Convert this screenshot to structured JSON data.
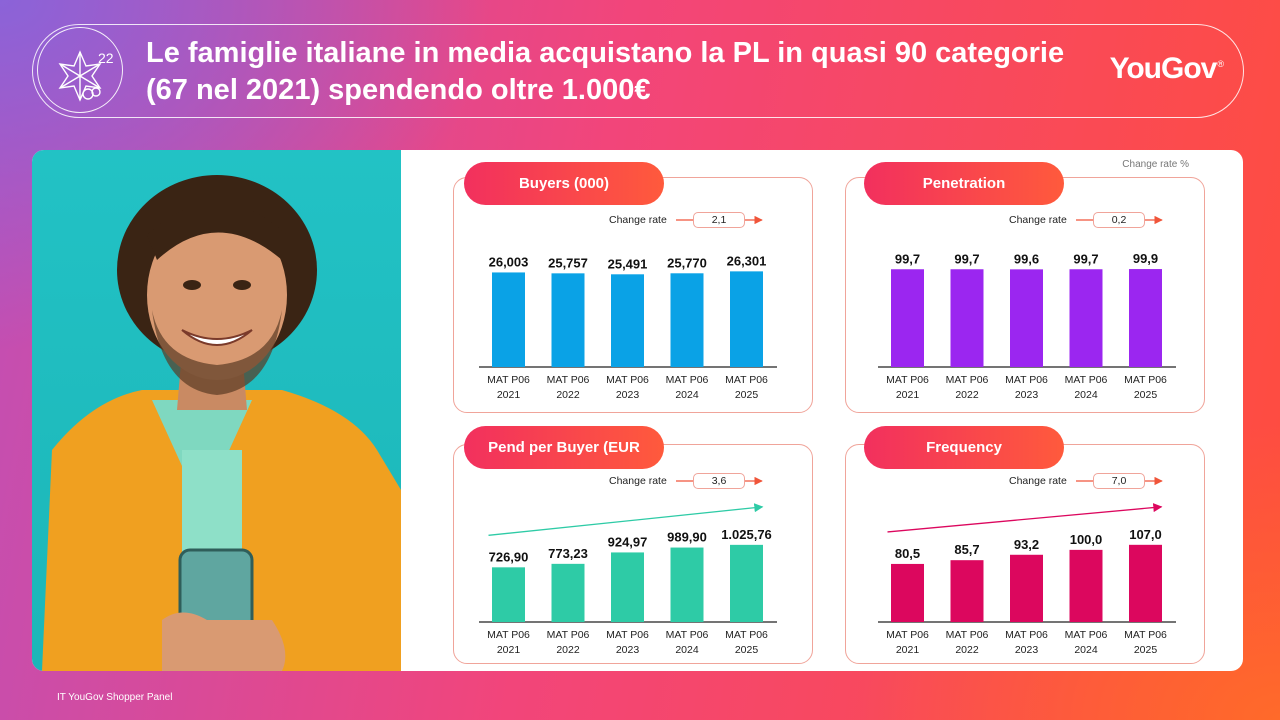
{
  "header": {
    "page_number": "22",
    "title": "Le famiglie italiane in media acquistano la PL in quasi 90 categorie (67 nel 2021) spendendo oltre 1.000€",
    "logo": "YouGov",
    "logo_mark": "®"
  },
  "main": {
    "corner_note": "Change rate %"
  },
  "footer": {
    "source": "IT YouGov Shopper Panel"
  },
  "colors": {
    "buyers": "#0aa2e6",
    "penetration": "#9b26f0",
    "spend": "#2ecba6",
    "frequency": "#dc075e",
    "panel_border": "#f0a49a",
    "pill_start": "#f2305e",
    "pill_end": "#ff5a3c"
  },
  "chart_data": [
    {
      "type": "bar",
      "title": "Buyers (000)",
      "change_rate_label": "Change rate",
      "change_rate": "2,1",
      "categories": [
        "MAT P06\n2021",
        "MAT P06\n2022",
        "MAT P06\n2023",
        "MAT P06\n2024",
        "MAT P06\n2025"
      ],
      "values": [
        26003,
        25757,
        25491,
        25770,
        26301
      ],
      "labels": [
        "26,003",
        "25,757",
        "25,491",
        "25,770",
        "26,301"
      ],
      "ylim": [
        0,
        27500
      ],
      "trend_arrow": false,
      "color": "#0aa2e6"
    },
    {
      "type": "bar",
      "title": "Penetration",
      "change_rate_label": "Change rate",
      "change_rate": "0,2",
      "categories": [
        "MAT P06\n2021",
        "MAT P06\n2022",
        "MAT P06\n2023",
        "MAT P06\n2024",
        "MAT P06\n2025"
      ],
      "values": [
        99.7,
        99.7,
        99.6,
        99.7,
        99.9
      ],
      "labels": [
        "99,7",
        "99,7",
        "99,6",
        "99,7",
        "99,9"
      ],
      "ylim": [
        0,
        102
      ],
      "trend_arrow": false,
      "color": "#9b26f0"
    },
    {
      "type": "bar",
      "title": "Pend per Buyer (EUR",
      "change_rate_label": "Change rate",
      "change_rate": "3,6",
      "categories": [
        "MAT P06\n2021",
        "MAT P06\n2022",
        "MAT P06\n2023",
        "MAT P06\n2024",
        "MAT P06\n2025"
      ],
      "values": [
        726.9,
        773.23,
        924.97,
        989.9,
        1025.76
      ],
      "labels": [
        "726,90",
        "773,23",
        "924,97",
        "989,90",
        "1.025,76"
      ],
      "ylim": [
        0,
        1170
      ],
      "trend_arrow": true,
      "color": "#2ecba6"
    },
    {
      "type": "bar",
      "title": "Frequency",
      "change_rate_label": "Change rate",
      "change_rate": "7,0",
      "categories": [
        "MAT P06\n2021",
        "MAT P06\n2022",
        "MAT P06\n2023",
        "MAT P06\n2024",
        "MAT P06\n2025"
      ],
      "values": [
        80.5,
        85.7,
        93.2,
        100.0,
        107.0
      ],
      "labels": [
        "80,5",
        "85,7",
        "93,2",
        "100,0",
        "107,0"
      ],
      "ylim": [
        0,
        122
      ],
      "trend_arrow": true,
      "color": "#dc075e"
    }
  ]
}
